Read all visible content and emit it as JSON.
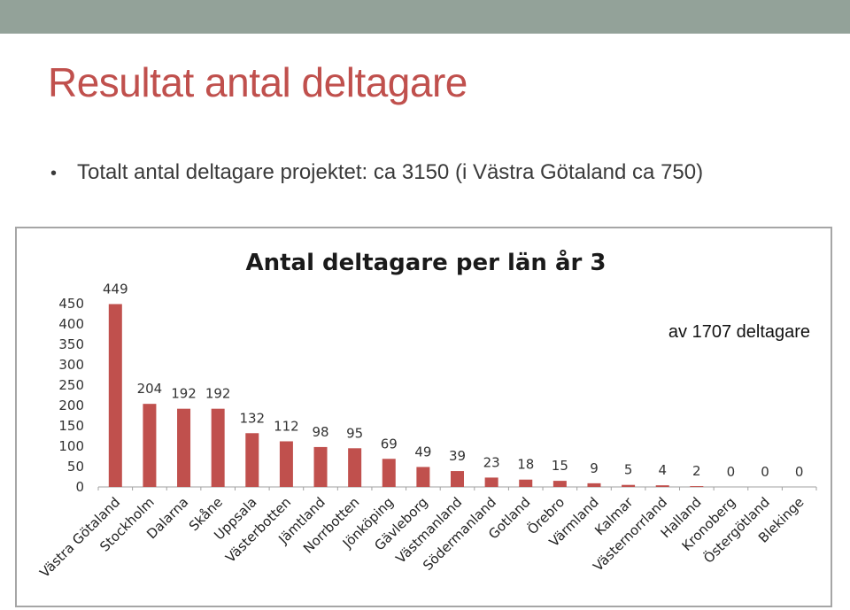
{
  "slide": {
    "title": "Resultat antal deltagare",
    "bullet": "Totalt antal deltagare projektet: ca 3150 (i Västra Götaland ca 750)"
  },
  "colors": {
    "bar": "#c0504d",
    "title": "#c0504d",
    "band": "#93a299"
  },
  "chart_data": {
    "type": "bar",
    "title": "Antal deltagare per län år 3",
    "annotation": "av 1707 deltagare",
    "xlabel": "",
    "ylabel": "",
    "ylim": [
      0,
      450
    ],
    "yticks": [
      0,
      50,
      100,
      150,
      200,
      250,
      300,
      350,
      400,
      450
    ],
    "grid": false,
    "categories": [
      "Västra Götaland",
      "Stockholm",
      "Dalarna",
      "Skåne",
      "Uppsala",
      "Västerbotten",
      "Jämtland",
      "Norrbotten",
      "Jönköping",
      "Gävleborg",
      "Västmanland",
      "Södermanland",
      "Gotland",
      "Örebro",
      "Värmland",
      "Kalmar",
      "Västernorrland",
      "Halland",
      "Kronoberg",
      "Östergötland",
      "Blekinge"
    ],
    "values": [
      449,
      204,
      192,
      192,
      132,
      112,
      98,
      95,
      69,
      49,
      39,
      23,
      18,
      15,
      9,
      5,
      4,
      2,
      0,
      0,
      0
    ]
  }
}
